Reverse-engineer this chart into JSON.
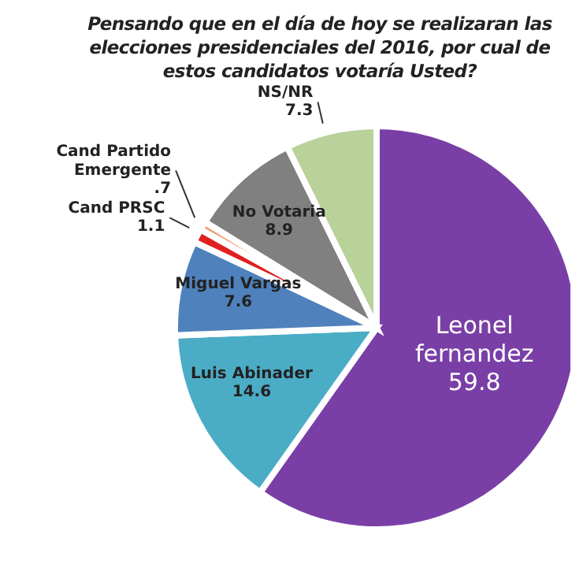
{
  "chart_data": {
    "type": "pie",
    "title": "Pensando que en el día de hoy se realizaran las elecciones presidenciales del 2016, por cual de estos candidatos votaría Usted?",
    "categories": [
      "Leonel fernandez",
      "Luis Abinader",
      "Miguel Vargas",
      "Cand PRSC",
      "Cand Partido Emergente",
      "No Votaria",
      "NS/NR"
    ],
    "values": [
      59.8,
      14.6,
      7.6,
      1.1,
      0.7,
      8.9,
      7.3
    ],
    "colors": [
      "#7a3fa6",
      "#4bacc6",
      "#4f81bd",
      "#e02020",
      "#f4a070",
      "#808080",
      "#b8d29a"
    ],
    "value_labels": [
      "59.8",
      "14.6",
      "7.6",
      "1.1",
      ".7",
      "8.9",
      "7.3"
    ],
    "legend": false
  }
}
